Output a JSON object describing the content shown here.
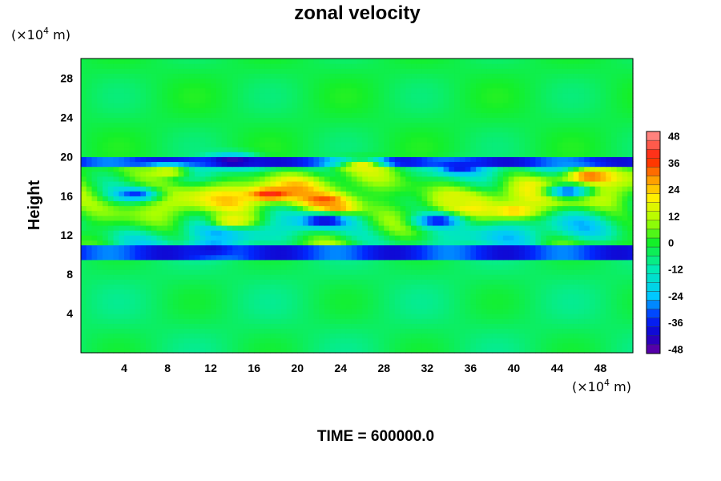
{
  "chart_data": {
    "type": "heatmap",
    "title": "zonal velocity",
    "ylabel": "Height",
    "xlabel": "",
    "x_unit": "(×10",
    "x_unit_exp": "4",
    "x_unit_tail": " m)",
    "y_unit": "(×10",
    "y_unit_exp": "4",
    "y_unit_tail": " m)",
    "xlim": [
      0,
      51
    ],
    "ylim": [
      0,
      30
    ],
    "xticks": [
      4,
      8,
      12,
      16,
      20,
      24,
      28,
      32,
      36,
      40,
      44,
      48
    ],
    "yticks": [
      4,
      8,
      12,
      16,
      20,
      24,
      28
    ],
    "colorbar": {
      "min": -50,
      "max": 50,
      "interval": 4,
      "ticks": [
        48,
        36,
        24,
        12,
        0,
        -12,
        -24,
        -36,
        -48
      ]
    },
    "bands": [
      {
        "y_from": 0,
        "y_to": 9.5,
        "value": -3,
        "description": "near-uniform weak field"
      },
      {
        "y_from": 9.5,
        "y_to": 11,
        "value": -34,
        "description": "negative jet near y≈10"
      },
      {
        "y_from": 11,
        "y_to": 19,
        "value": 8,
        "description": "turbulent mixed layer"
      },
      {
        "y_from": 19,
        "y_to": 20,
        "value": -34,
        "description": "negative jet near y≈19.5"
      },
      {
        "y_from": 20,
        "y_to": 30,
        "value": -1,
        "description": "near-uniform weak field"
      }
    ],
    "features": [
      {
        "x": 14,
        "y": 19.6,
        "value": -46
      },
      {
        "x": 35,
        "y": 18.9,
        "value": -38
      },
      {
        "x": 17.5,
        "y": 16.2,
        "value": 40
      },
      {
        "x": 22.5,
        "y": 15.6,
        "value": 36
      },
      {
        "x": 23.5,
        "y": 14.8,
        "value": 30
      },
      {
        "x": 22.5,
        "y": 13.5,
        "value": -42
      },
      {
        "x": 47,
        "y": 18.0,
        "value": 34
      },
      {
        "x": 40,
        "y": 14.5,
        "value": 24
      },
      {
        "x": 5,
        "y": 16.2,
        "value": -34
      },
      {
        "x": 33,
        "y": 13.5,
        "value": -38
      },
      {
        "x": 12,
        "y": 10.6,
        "value": -40
      },
      {
        "x": 45,
        "y": 16.5,
        "value": -34
      },
      {
        "x": 14,
        "y": 13.5,
        "value": 20
      },
      {
        "x": 26,
        "y": 19.2,
        "value": 18
      },
      {
        "x": 8,
        "y": 18.5,
        "value": 16
      },
      {
        "x": 35,
        "y": 15.5,
        "value": 14
      }
    ]
  },
  "footer": {
    "time_label": "TIME = 600000.0"
  },
  "colors": {
    "background": "#ffffff",
    "scale_low": "#6a00a0",
    "scale_mid": "#00ff20",
    "scale_high": "#ff9090"
  }
}
